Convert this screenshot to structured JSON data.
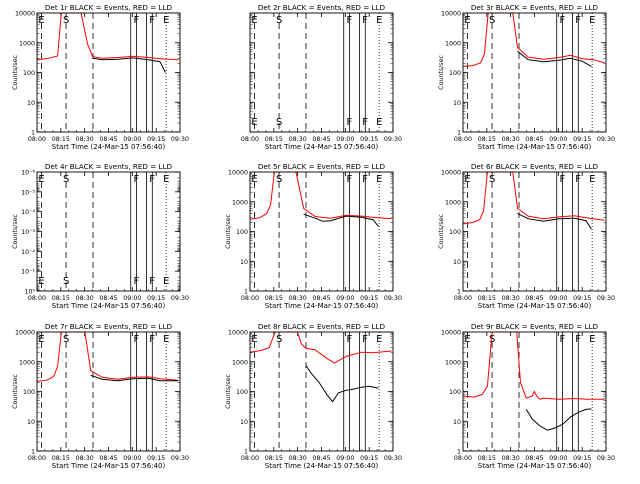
{
  "chart_data": [
    {
      "type": "line",
      "title": "Det 1r BLACK = Events, RED = LLD",
      "xlabel": "Start Time (24-Mar-15 07:56:40)",
      "ylabel": "Counts/sec",
      "y_scale": "log",
      "ylim": [
        1,
        10000
      ],
      "ytick_labels": [
        "1",
        "10",
        "100",
        "1000",
        "10000"
      ],
      "xlim": [
        -0.95,
        36.2
      ],
      "xtick_labels": [
        "08:00",
        "08:15",
        "08:30",
        "08:45",
        "09:00",
        "09:15",
        "09:30"
      ],
      "markers": [
        {
          "label": "E",
          "x": 0.2,
          "style": "dashed"
        },
        {
          "label": "S",
          "x": 6.6,
          "style": "dashed"
        },
        {
          "label": "",
          "x": 13.6,
          "style": "dashed"
        },
        {
          "label": "",
          "x": 23.4,
          "style": "solid"
        },
        {
          "label": "F",
          "x": 24.9,
          "style": "solid"
        },
        {
          "label": "",
          "x": 27.5,
          "style": "solid"
        },
        {
          "label": "F",
          "x": 29.0,
          "style": "solid"
        },
        {
          "label": "E",
          "x": 32.6,
          "style": "dotted"
        }
      ],
      "series": [
        {
          "color": "#ff0000",
          "x": [
            -0.9,
            2,
            4.4,
            5.4,
            6.8,
            10.5,
            12.2,
            13.5,
            16,
            20,
            24,
            28,
            31,
            35.8
          ],
          "values": [
            270,
            300,
            360,
            10000,
            10000,
            10000,
            900,
            340,
            300,
            320,
            350,
            320,
            290,
            270
          ]
        },
        {
          "color": "#000000",
          "x": [
            13.5,
            16,
            20,
            24,
            28,
            31,
            32.4
          ],
          "values": [
            300,
            270,
            280,
            310,
            270,
            230,
            100
          ]
        }
      ]
    },
    {
      "type": "line",
      "title": "Det 2r BLACK = Events, RED = LLD",
      "xlabel": "Start Time (24-Mar-15 07:56:40)",
      "ylabel": "",
      "y_scale": "log",
      "ylim": [
        1,
        10000
      ],
      "ytick_labels": [],
      "xlim": [
        -0.95,
        36.2
      ],
      "xtick_labels": [
        "08:00",
        "08:15",
        "08:30",
        "08:45",
        "09:00",
        "09:15",
        "09:30"
      ],
      "markers": [
        {
          "label": "E",
          "x": 0.2,
          "style": "dashed"
        },
        {
          "label": "S",
          "x": 6.6,
          "style": "dashed"
        },
        {
          "label": "",
          "x": 13.6,
          "style": "dashed"
        },
        {
          "label": "",
          "x": 23.4,
          "style": "solid"
        },
        {
          "label": "F",
          "x": 24.9,
          "style": "solid"
        },
        {
          "label": "",
          "x": 27.5,
          "style": "solid"
        },
        {
          "label": "F",
          "x": 29.0,
          "style": "solid"
        },
        {
          "label": "E",
          "x": 32.6,
          "style": "dotted"
        }
      ],
      "series": []
    },
    {
      "type": "line",
      "title": "Det 3r BLACK = Events, RED = LLD",
      "xlabel": "Start Time (24-Mar-15 07:56:40)",
      "ylabel": "Counts/sec",
      "y_scale": "log",
      "ylim": [
        1,
        10000
      ],
      "ytick_labels": [
        "1",
        "10",
        "100",
        "1000",
        "10000"
      ],
      "xlim": [
        -0.95,
        36.2
      ],
      "xtick_labels": [
        "08:00",
        "08:15",
        "08:30",
        "08:45",
        "09:00",
        "09:15",
        "09:30"
      ],
      "markers": [
        {
          "label": "E",
          "x": 0.2,
          "style": "dashed"
        },
        {
          "label": "S",
          "x": 6.6,
          "style": "dashed"
        },
        {
          "label": "",
          "x": 13.6,
          "style": "dashed"
        },
        {
          "label": "",
          "x": 23.4,
          "style": "solid"
        },
        {
          "label": "F",
          "x": 24.9,
          "style": "solid"
        },
        {
          "label": "",
          "x": 27.5,
          "style": "solid"
        },
        {
          "label": "F",
          "x": 29.0,
          "style": "solid"
        },
        {
          "label": "E",
          "x": 32.6,
          "style": "dotted"
        }
      ],
      "series": [
        {
          "color": "#ff0000",
          "x": [
            -0.9,
            1.6,
            3.6,
            4.6,
            5.6,
            12.0,
            13.2,
            16,
            20,
            24,
            27,
            30,
            33,
            35.8
          ],
          "values": [
            160,
            170,
            210,
            420,
            10000,
            10000,
            700,
            330,
            280,
            320,
            380,
            290,
            270,
            210
          ]
        },
        {
          "color": "#000000",
          "x": [
            13.2,
            16,
            20,
            24,
            27,
            30,
            32.4
          ],
          "values": [
            520,
            270,
            230,
            260,
            300,
            240,
            160
          ]
        }
      ]
    },
    {
      "type": "line",
      "title": "Det 4r BLACK = Events, RED = LLD",
      "xlabel": "Start Time (24-Mar-15 07:56:40)",
      "ylabel": "Counts/sec",
      "y_scale": "log",
      "ylim": [
        1,
        1e-06
      ],
      "ytick_labels": [
        "10⁰",
        "10⁻¹",
        "10⁻²",
        "10⁻³",
        "10⁻⁴",
        "10⁻⁵",
        "10⁻⁶"
      ],
      "xlim": [
        -0.95,
        36.2
      ],
      "xtick_labels": [
        "08:00",
        "08:15",
        "08:30",
        "08:45",
        "09:00",
        "09:15",
        "09:30"
      ],
      "markers": [
        {
          "label": "E",
          "x": 0.2,
          "style": "dashed"
        },
        {
          "label": "S",
          "x": 6.6,
          "style": "dashed"
        },
        {
          "label": "",
          "x": 13.6,
          "style": "dashed"
        },
        {
          "label": "",
          "x": 23.4,
          "style": "solid"
        },
        {
          "label": "F",
          "x": 24.9,
          "style": "solid"
        },
        {
          "label": "",
          "x": 27.5,
          "style": "solid"
        },
        {
          "label": "F",
          "x": 29.0,
          "style": "solid"
        },
        {
          "label": "E",
          "x": 32.6,
          "style": "dotted"
        }
      ],
      "series": []
    },
    {
      "type": "line",
      "title": "Det 5r BLACK = Events, RED = LLD",
      "xlabel": "Start Time (24-Mar-15 07:56:40)",
      "ylabel": "Counts/sec",
      "y_scale": "log",
      "ylim": [
        1,
        10000
      ],
      "ytick_labels": [
        "1",
        "10",
        "100",
        "1000",
        "10000"
      ],
      "xlim": [
        -0.95,
        36.2
      ],
      "xtick_labels": [
        "08:00",
        "08:15",
        "08:30",
        "08:45",
        "09:00",
        "09:15",
        "09:30"
      ],
      "markers": [
        {
          "label": "E",
          "x": 0.2,
          "style": "dashed"
        },
        {
          "label": "S",
          "x": 6.6,
          "style": "dashed"
        },
        {
          "label": "",
          "x": 13.6,
          "style": "dashed"
        },
        {
          "label": "",
          "x": 23.4,
          "style": "solid"
        },
        {
          "label": "F",
          "x": 24.9,
          "style": "solid"
        },
        {
          "label": "",
          "x": 27.5,
          "style": "solid"
        },
        {
          "label": "F",
          "x": 29.0,
          "style": "solid"
        },
        {
          "label": "E",
          "x": 32.6,
          "style": "dotted"
        }
      ],
      "series": [
        {
          "color": "#ff0000",
          "x": [
            -0.9,
            1.6,
            3.4,
            4.4,
            5.4,
            11.0,
            13.0,
            16,
            20,
            24,
            28,
            31,
            35.8
          ],
          "values": [
            260,
            290,
            400,
            800,
            10000,
            10000,
            600,
            320,
            280,
            350,
            330,
            300,
            270
          ]
        },
        {
          "color": "#000000",
          "x": [
            13.0,
            16,
            18,
            20,
            24,
            28,
            31,
            32.4
          ],
          "values": [
            380,
            280,
            220,
            230,
            330,
            300,
            250,
            150
          ]
        }
      ]
    },
    {
      "type": "line",
      "title": "Det 6r BLACK = Events, RED = LLD",
      "xlabel": "Start Time (24-Mar-15 07:56:40)",
      "ylabel": "Counts/sec",
      "y_scale": "log",
      "ylim": [
        1,
        10000
      ],
      "ytick_labels": [
        "1",
        "10",
        "100",
        "1000",
        "10000"
      ],
      "xlim": [
        -0.95,
        36.2
      ],
      "xtick_labels": [
        "08:00",
        "08:15",
        "08:30",
        "08:45",
        "09:00",
        "09:15",
        "09:30"
      ],
      "markers": [
        {
          "label": "E",
          "x": 0.2,
          "style": "dashed"
        },
        {
          "label": "S",
          "x": 6.6,
          "style": "dashed"
        },
        {
          "label": "",
          "x": 13.6,
          "style": "dashed"
        },
        {
          "label": "",
          "x": 23.4,
          "style": "solid"
        },
        {
          "label": "F",
          "x": 24.9,
          "style": "solid"
        },
        {
          "label": "",
          "x": 27.5,
          "style": "solid"
        },
        {
          "label": "F",
          "x": 29.0,
          "style": "solid"
        },
        {
          "label": "E",
          "x": 32.6,
          "style": "dotted"
        }
      ],
      "series": [
        {
          "color": "#ff0000",
          "x": [
            -0.9,
            1.6,
            3.4,
            4.4,
            5.4,
            12.0,
            13.2,
            16,
            20,
            24,
            28,
            31,
            35.8
          ],
          "values": [
            180,
            200,
            250,
            500,
            10000,
            10000,
            600,
            330,
            270,
            310,
            340,
            290,
            240
          ]
        },
        {
          "color": "#000000",
          "x": [
            13.2,
            16,
            20,
            24,
            28,
            31,
            32.4
          ],
          "values": [
            400,
            270,
            220,
            270,
            280,
            230,
            120
          ]
        }
      ]
    },
    {
      "type": "line",
      "title": "Det 7r BLACK = Events, RED = LLD",
      "xlabel": "Start Time (24-Mar-15 07:56:40)",
      "ylabel": "Counts/sec",
      "y_scale": "log",
      "ylim": [
        1,
        10000
      ],
      "ytick_labels": [
        "1",
        "10",
        "100",
        "1000",
        "10000"
      ],
      "xlim": [
        -0.95,
        36.2
      ],
      "xtick_labels": [
        "08:00",
        "08:15",
        "08:30",
        "08:45",
        "09:00",
        "09:15",
        "09:30"
      ],
      "markers": [
        {
          "label": "E",
          "x": 0.2,
          "style": "dashed"
        },
        {
          "label": "S",
          "x": 6.6,
          "style": "dashed"
        },
        {
          "label": "",
          "x": 13.6,
          "style": "dashed"
        },
        {
          "label": "",
          "x": 23.4,
          "style": "solid"
        },
        {
          "label": "F",
          "x": 24.9,
          "style": "solid"
        },
        {
          "label": "",
          "x": 27.5,
          "style": "solid"
        },
        {
          "label": "F",
          "x": 29.0,
          "style": "solid"
        },
        {
          "label": "E",
          "x": 32.6,
          "style": "dotted"
        }
      ],
      "series": [
        {
          "color": "#ff0000",
          "x": [
            -0.9,
            1.6,
            3.4,
            4.4,
            5.4,
            11.5,
            13.0,
            16,
            20,
            24,
            28,
            31,
            35.8
          ],
          "values": [
            220,
            240,
            320,
            700,
            10000,
            10000,
            500,
            300,
            260,
            300,
            310,
            270,
            240
          ]
        },
        {
          "color": "#000000",
          "x": [
            13.0,
            16,
            20,
            24,
            28,
            31,
            35.8
          ],
          "values": [
            350,
            260,
            230,
            270,
            280,
            230,
            230
          ]
        }
      ]
    },
    {
      "type": "line",
      "title": "Det 8r BLACK = Events, RED = LLD",
      "xlabel": "Start Time (24-Mar-15 07:56:40)",
      "ylabel": "Counts/sec",
      "y_scale": "log",
      "ylim": [
        1,
        10000
      ],
      "ytick_labels": [
        "1",
        "10",
        "100",
        "1000",
        "10000"
      ],
      "xlim": [
        -0.95,
        36.2
      ],
      "xtick_labels": [
        "08:00",
        "08:15",
        "08:30",
        "08:45",
        "09:00",
        "09:15",
        "09:30"
      ],
      "markers": [
        {
          "label": "E",
          "x": 0.2,
          "style": "dashed"
        },
        {
          "label": "S",
          "x": 6.6,
          "style": "dashed"
        },
        {
          "label": "",
          "x": 13.6,
          "style": "dashed"
        },
        {
          "label": "",
          "x": 23.4,
          "style": "solid"
        },
        {
          "label": "F",
          "x": 24.9,
          "style": "solid"
        },
        {
          "label": "",
          "x": 27.5,
          "style": "solid"
        },
        {
          "label": "F",
          "x": 29.0,
          "style": "solid"
        },
        {
          "label": "E",
          "x": 32.6,
          "style": "dotted"
        }
      ],
      "series": [
        {
          "color": "#ff0000",
          "x": [
            -0.9,
            2,
            4,
            5.6,
            7.2,
            8.6,
            11.4,
            12.4,
            13.6,
            16,
            19,
            21,
            24,
            28,
            31,
            35.8
          ],
          "values": [
            2100,
            2400,
            3000,
            10000,
            10000,
            10000,
            10000,
            4000,
            2800,
            2500,
            1300,
            900,
            1500,
            2100,
            2000,
            2300
          ]
        },
        {
          "color": "#000000",
          "x": [
            13.6,
            15,
            17,
            19,
            20.5,
            22,
            24,
            26,
            28,
            30,
            32.4
          ],
          "values": [
            750,
            400,
            200,
            80,
            45,
            90,
            110,
            120,
            140,
            150,
            130
          ]
        }
      ]
    },
    {
      "type": "line",
      "title": "Det 9r BLACK = Events, RED = LLD",
      "xlabel": "Start Time (24-Mar-15 07:56:40)",
      "ylabel": "",
      "y_scale": "log",
      "ylim": [
        1,
        10000
      ],
      "ytick_labels": [
        "1",
        "10",
        "100",
        "1000",
        "10000"
      ],
      "xlim": [
        -0.95,
        36.2
      ],
      "xtick_labels": [
        "08:00",
        "08:15",
        "08:30",
        "08:45",
        "09:00",
        "09:15",
        "09:30"
      ],
      "markers": [
        {
          "label": "E",
          "x": 0.2,
          "style": "dashed"
        },
        {
          "label": "S",
          "x": 6.6,
          "style": "dashed"
        },
        {
          "label": "",
          "x": 13.6,
          "style": "dashed"
        },
        {
          "label": "",
          "x": 23.4,
          "style": "solid"
        },
        {
          "label": "F",
          "x": 24.9,
          "style": "solid"
        },
        {
          "label": "",
          "x": 27.5,
          "style": "solid"
        },
        {
          "label": "F",
          "x": 29.0,
          "style": "solid"
        },
        {
          "label": "E",
          "x": 32.6,
          "style": "dotted"
        }
      ],
      "series": [
        {
          "color": "#ff0000",
          "x": [
            -0.9,
            2,
            4,
            5.4,
            6.6,
            13.0,
            14.0,
            15.5,
            17,
            17.6,
            18.2,
            19,
            20,
            24,
            28,
            31,
            35.8
          ],
          "values": [
            70,
            65,
            80,
            150,
            10000,
            10000,
            200,
            60,
            70,
            100,
            70,
            55,
            60,
            55,
            58,
            55,
            55
          ]
        },
        {
          "color": "#000000",
          "x": [
            15.5,
            17,
            19,
            21,
            23,
            25,
            27,
            29,
            31,
            32.4
          ],
          "values": [
            25,
            12,
            7,
            5,
            6,
            8,
            14,
            20,
            25,
            26
          ]
        }
      ]
    }
  ]
}
